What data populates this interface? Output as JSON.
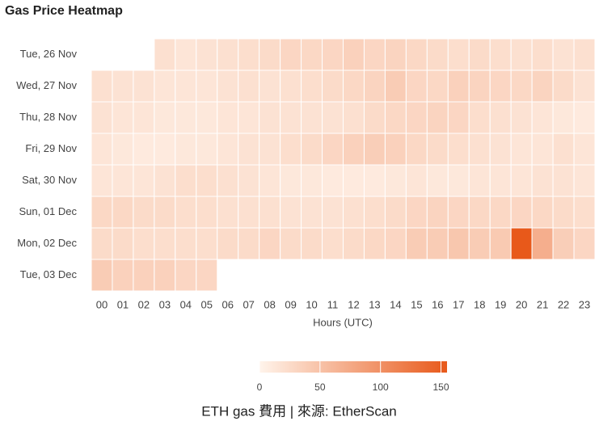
{
  "chart_data": {
    "type": "heatmap",
    "title": "Gas Price Heatmap",
    "x_label": "Hours (UTC)",
    "caption": "ETH gas 費用 | 來源: EtherScan",
    "categories": [
      "00",
      "01",
      "02",
      "03",
      "04",
      "05",
      "06",
      "07",
      "08",
      "09",
      "10",
      "11",
      "12",
      "13",
      "14",
      "15",
      "16",
      "17",
      "18",
      "19",
      "20",
      "21",
      "22",
      "23"
    ],
    "rows": [
      "Tue, 26 Nov",
      "Wed, 27 Nov",
      "Thu, 28 Nov",
      "Fri, 29 Nov",
      "Sat, 30 Nov",
      "Sun, 01 Dec",
      "Mon, 02 Dec",
      "Tue, 03 Dec"
    ],
    "values": [
      [
        null,
        null,
        null,
        20,
        15,
        18,
        20,
        22,
        25,
        30,
        28,
        30,
        35,
        30,
        32,
        28,
        25,
        22,
        25,
        22,
        20,
        22,
        18,
        20
      ],
      [
        20,
        18,
        18,
        15,
        15,
        15,
        18,
        20,
        18,
        20,
        22,
        25,
        28,
        32,
        40,
        30,
        28,
        35,
        32,
        30,
        28,
        32,
        25,
        18
      ],
      [
        18,
        15,
        15,
        12,
        12,
        12,
        15,
        15,
        18,
        18,
        18,
        18,
        20,
        25,
        28,
        30,
        32,
        30,
        22,
        20,
        18,
        15,
        12,
        10
      ],
      [
        15,
        12,
        10,
        10,
        12,
        12,
        15,
        18,
        18,
        22,
        25,
        30,
        35,
        38,
        35,
        28,
        25,
        22,
        20,
        18,
        15,
        15,
        20,
        15
      ],
      [
        15,
        15,
        15,
        18,
        22,
        22,
        20,
        18,
        15,
        12,
        12,
        10,
        10,
        10,
        12,
        15,
        12,
        12,
        15,
        15,
        15,
        18,
        18,
        15
      ],
      [
        28,
        28,
        25,
        25,
        22,
        22,
        20,
        20,
        20,
        18,
        18,
        18,
        20,
        22,
        25,
        30,
        32,
        30,
        28,
        28,
        30,
        28,
        25,
        22
      ],
      [
        25,
        25,
        22,
        22,
        22,
        22,
        25,
        25,
        30,
        25,
        25,
        22,
        25,
        28,
        30,
        40,
        40,
        45,
        40,
        42,
        155,
        70,
        38,
        30
      ],
      [
        40,
        35,
        35,
        35,
        30,
        30,
        null,
        null,
        null,
        null,
        null,
        null,
        null,
        null,
        null,
        null,
        null,
        null,
        null,
        null,
        null,
        null,
        null,
        null
      ]
    ],
    "colors": [
      "#fff4eb",
      "#e8591a"
    ],
    "zlim": [
      0,
      155
    ],
    "zticks": [
      0,
      50,
      100,
      150
    ]
  }
}
